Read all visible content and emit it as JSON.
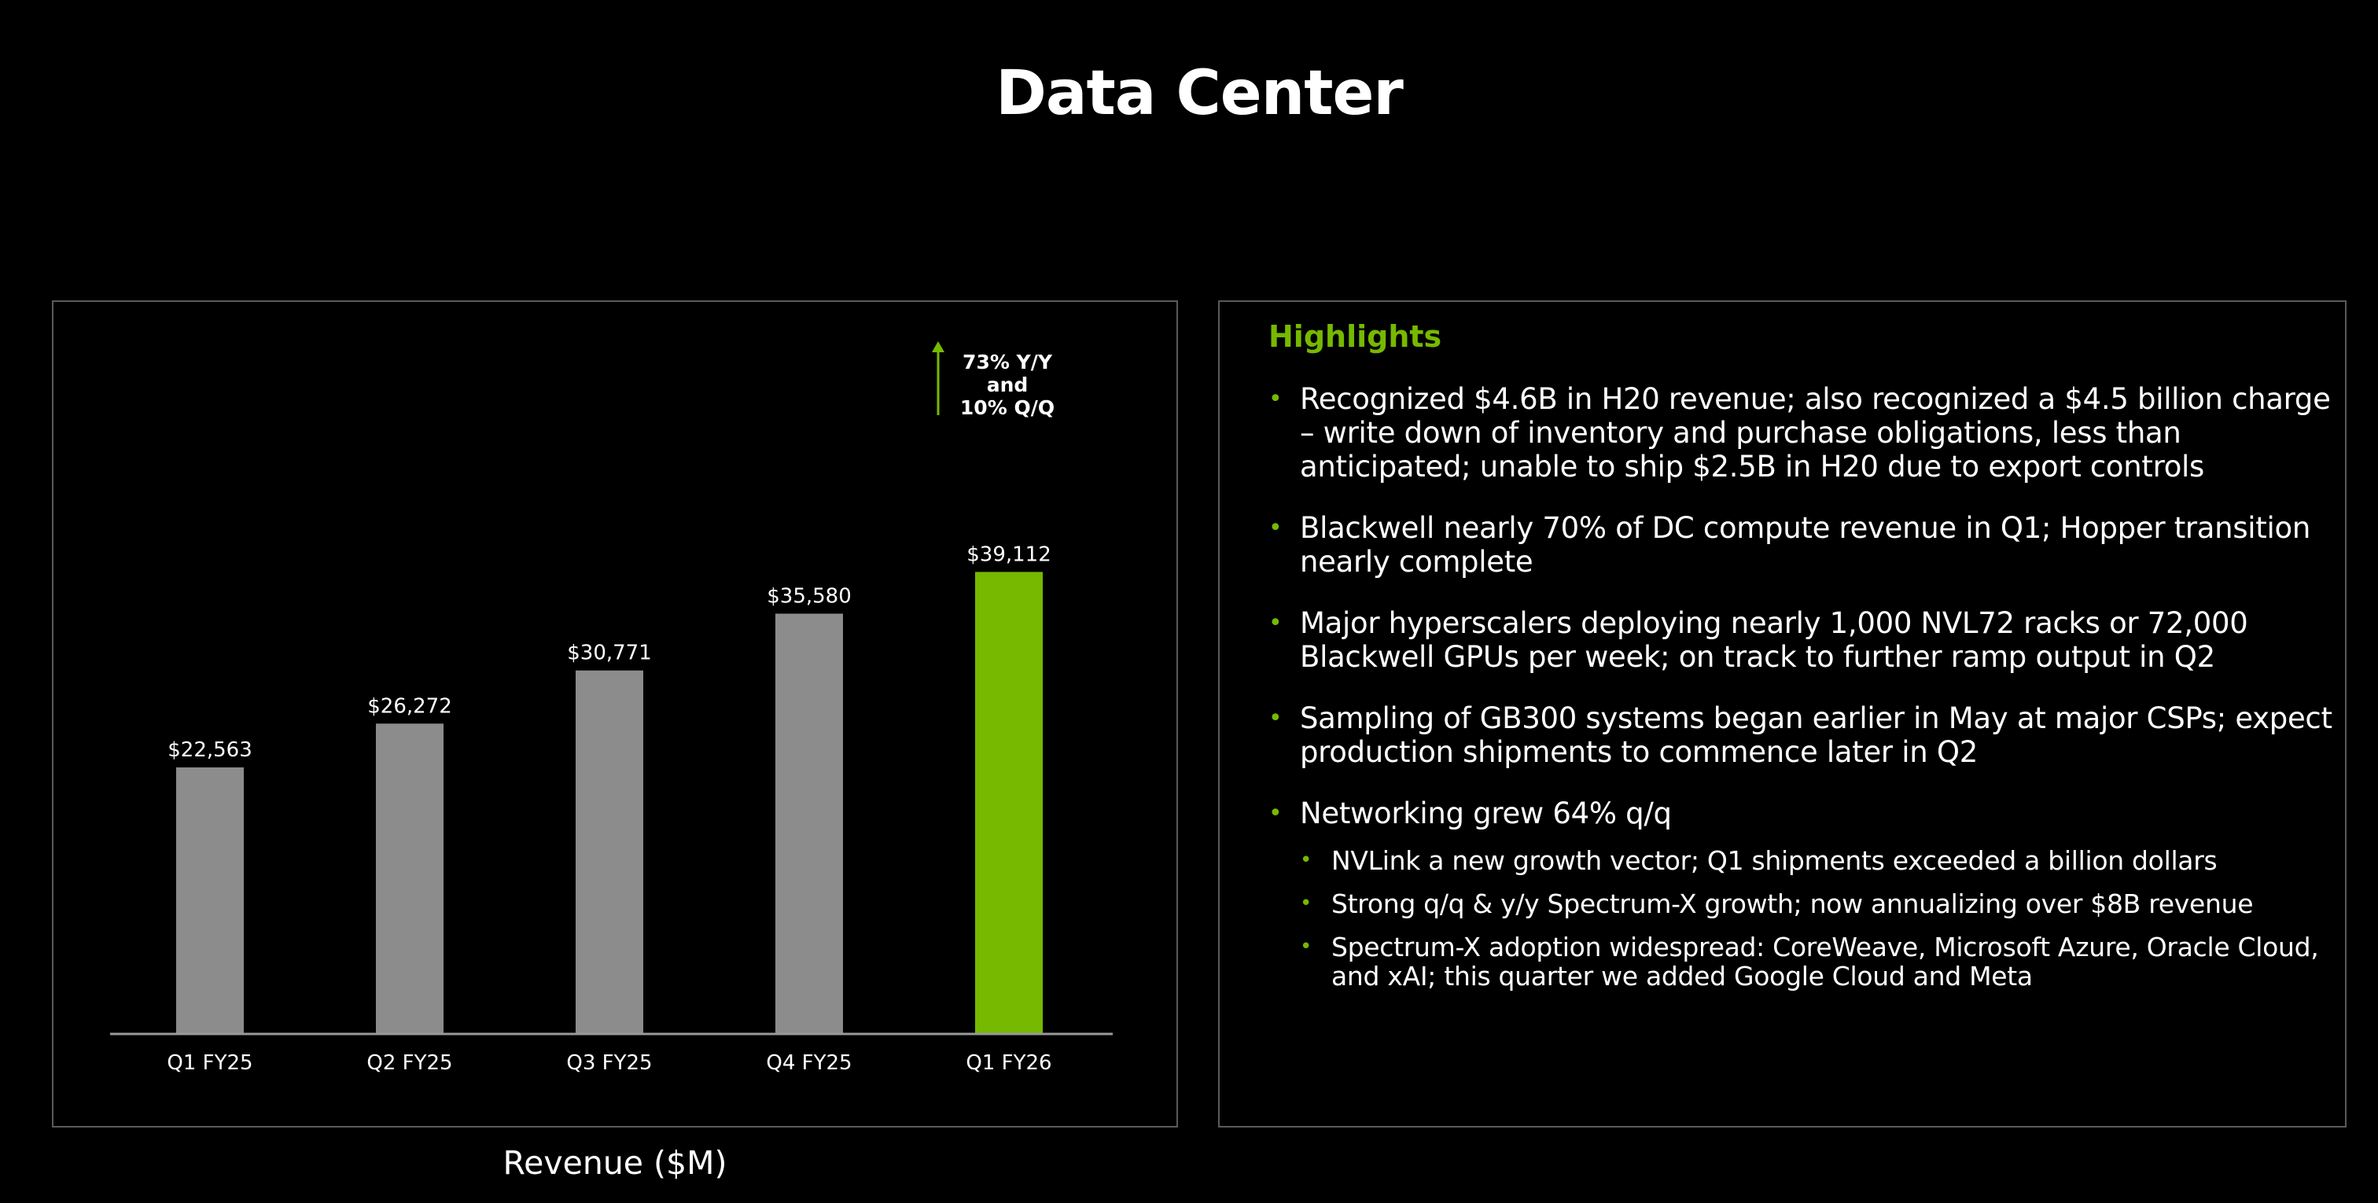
{
  "page": {
    "title": "Data Center"
  },
  "chart_data": {
    "type": "bar",
    "categories": [
      "Q1 FY25",
      "Q2 FY25",
      "Q3 FY25",
      "Q4 FY25",
      "Q1 FY26"
    ],
    "values": [
      22563,
      26272,
      30771,
      35580,
      39112
    ],
    "data_labels": [
      "$22,563",
      "$26,272",
      "$30,771",
      "$35,580",
      "$39,112"
    ],
    "colors": [
      "#8c8c8c",
      "#8c8c8c",
      "#8c8c8c",
      "#8c8c8c",
      "#76b900"
    ],
    "ylim": [
      0,
      42000
    ],
    "grid": false,
    "annotation": {
      "lines": [
        "73% Y/Y",
        "and",
        "10% Q/Q"
      ],
      "arrow_color": "#76b900"
    },
    "caption": "Revenue ($M)"
  },
  "highlights": {
    "title": "Highlights",
    "accent_color": "#76b900",
    "items": [
      {
        "text": "Recognized $4.6B in H20 revenue; also recognized a $4.5 billion charge – write down of inventory and purchase obligations, less than anticipated; unable to ship $2.5B in H20 due to export controls"
      },
      {
        "text": "Blackwell nearly 70% of DC compute revenue in Q1; Hopper transition nearly complete"
      },
      {
        "text": "Major hyperscalers deploying nearly 1,000 NVL72 racks or 72,000 Blackwell GPUs per week; on track to further ramp output in Q2"
      },
      {
        "text": "Sampling of GB300 systems began earlier in May at major CSPs; expect production shipments to commence later in Q2"
      },
      {
        "text": "Networking grew 64% q/q",
        "sub": [
          "NVLink a new growth vector; Q1 shipments exceeded a billion dollars",
          "Strong q/q & y/y Spectrum-X growth; now annualizing over $8B revenue",
          "Spectrum-X adoption widespread: CoreWeave, Microsoft Azure, Oracle Cloud, and xAI; this quarter we added Google Cloud and Meta"
        ]
      }
    ]
  }
}
